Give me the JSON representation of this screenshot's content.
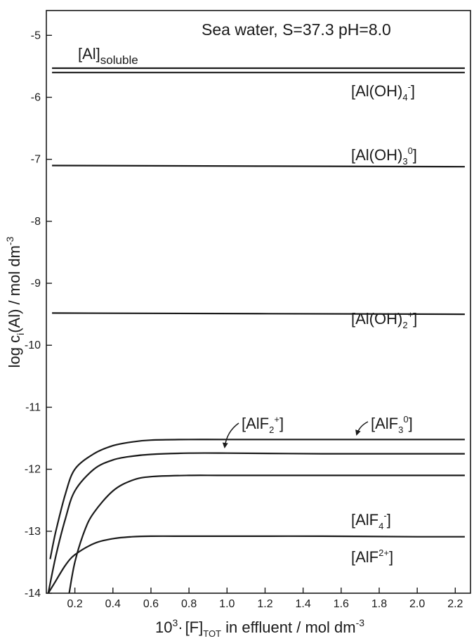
{
  "chart_data": {
    "type": "line",
    "title": "Sea water, S=37.3  pH=8.0",
    "ylabel": {
      "base": "log c",
      "sub": "i",
      "rest": "(Al) / mol dm",
      "sup": "-3"
    },
    "xlabel": {
      "pre": "10",
      "sup": "3",
      "dot": "·",
      "bracket": "[F]",
      "sub": "TOT",
      "rest": "  in effluent / mol dm",
      "sup2": "-3"
    },
    "xlim": [
      0.05,
      2.28
    ],
    "ylim": [
      -14,
      -4.6
    ],
    "xticks": [
      "0.2",
      "0.4",
      "0.6",
      "0.8",
      "1.0",
      "1.2",
      "1.4",
      "1.6",
      "1.8",
      "2.0",
      "2.2"
    ],
    "yticks": [
      "-5",
      "-6",
      "-7",
      "-8",
      "-9",
      "-10",
      "-11",
      "-12",
      "-13",
      "-14"
    ],
    "grid": false,
    "series": [
      {
        "label_main": "[Al]",
        "label_sub": "soluble",
        "x": [
          0.08,
          2.25
        ],
        "y": [
          -5.53,
          -5.53
        ]
      },
      {
        "label_main": "[Al(OH)",
        "label_sub": "4",
        "label_sup": "-",
        "label_end": "]",
        "x": [
          0.08,
          2.25
        ],
        "y": [
          -5.6,
          -5.6
        ]
      },
      {
        "label_main": "[Al(OH)",
        "label_sub": "3",
        "label_sup": "0",
        "label_end": "]",
        "x": [
          0.08,
          2.25
        ],
        "y": [
          -7.1,
          -7.12
        ]
      },
      {
        "label_main": "[Al(OH)",
        "label_sub": "2",
        "label_sup": "+",
        "label_end": "]",
        "x": [
          0.08,
          2.25
        ],
        "y": [
          -9.48,
          -9.5
        ]
      },
      {
        "label_main": "[AlF",
        "label_sub": "3",
        "label_sup": "0",
        "label_end": "]",
        "x": [
          0.07,
          0.1,
          0.15,
          0.2,
          0.3,
          0.4,
          0.5,
          0.6,
          0.8,
          1.0,
          1.5,
          2.0,
          2.25
        ],
        "y": [
          -13.45,
          -13.0,
          -12.4,
          -12.0,
          -11.75,
          -11.62,
          -11.56,
          -11.53,
          -11.52,
          -11.52,
          -11.52,
          -11.52,
          -11.52
        ]
      },
      {
        "label_main": "[AlF",
        "label_sub": "2",
        "label_sup": "+",
        "label_end": "]",
        "x": [
          0.06,
          0.1,
          0.15,
          0.2,
          0.3,
          0.4,
          0.5,
          0.6,
          0.8,
          1.0,
          1.5,
          2.0,
          2.25
        ],
        "y": [
          -14.0,
          -13.4,
          -12.8,
          -12.35,
          -12.0,
          -11.85,
          -11.79,
          -11.76,
          -11.74,
          -11.74,
          -11.75,
          -11.75,
          -11.75
        ]
      },
      {
        "label_main": "[AlF",
        "label_sub": "4",
        "label_sup": "-",
        "label_end": "]",
        "x": [
          0.17,
          0.2,
          0.25,
          0.3,
          0.4,
          0.5,
          0.6,
          0.8,
          1.0,
          1.5,
          2.0,
          2.25
        ],
        "y": [
          -14.0,
          -13.5,
          -13.0,
          -12.7,
          -12.35,
          -12.18,
          -12.12,
          -12.1,
          -12.1,
          -12.1,
          -12.1,
          -12.1
        ]
      },
      {
        "label_main": "[AlF",
        "label_sub": "",
        "label_sup": "2+",
        "label_end": "]",
        "x": [
          0.06,
          0.1,
          0.15,
          0.2,
          0.3,
          0.4,
          0.5,
          0.6,
          0.8,
          1.0,
          1.5,
          2.0,
          2.25
        ],
        "y": [
          -14.0,
          -13.8,
          -13.55,
          -13.38,
          -13.2,
          -13.12,
          -13.09,
          -13.08,
          -13.08,
          -13.08,
          -13.08,
          -13.09,
          -13.09
        ]
      }
    ]
  }
}
